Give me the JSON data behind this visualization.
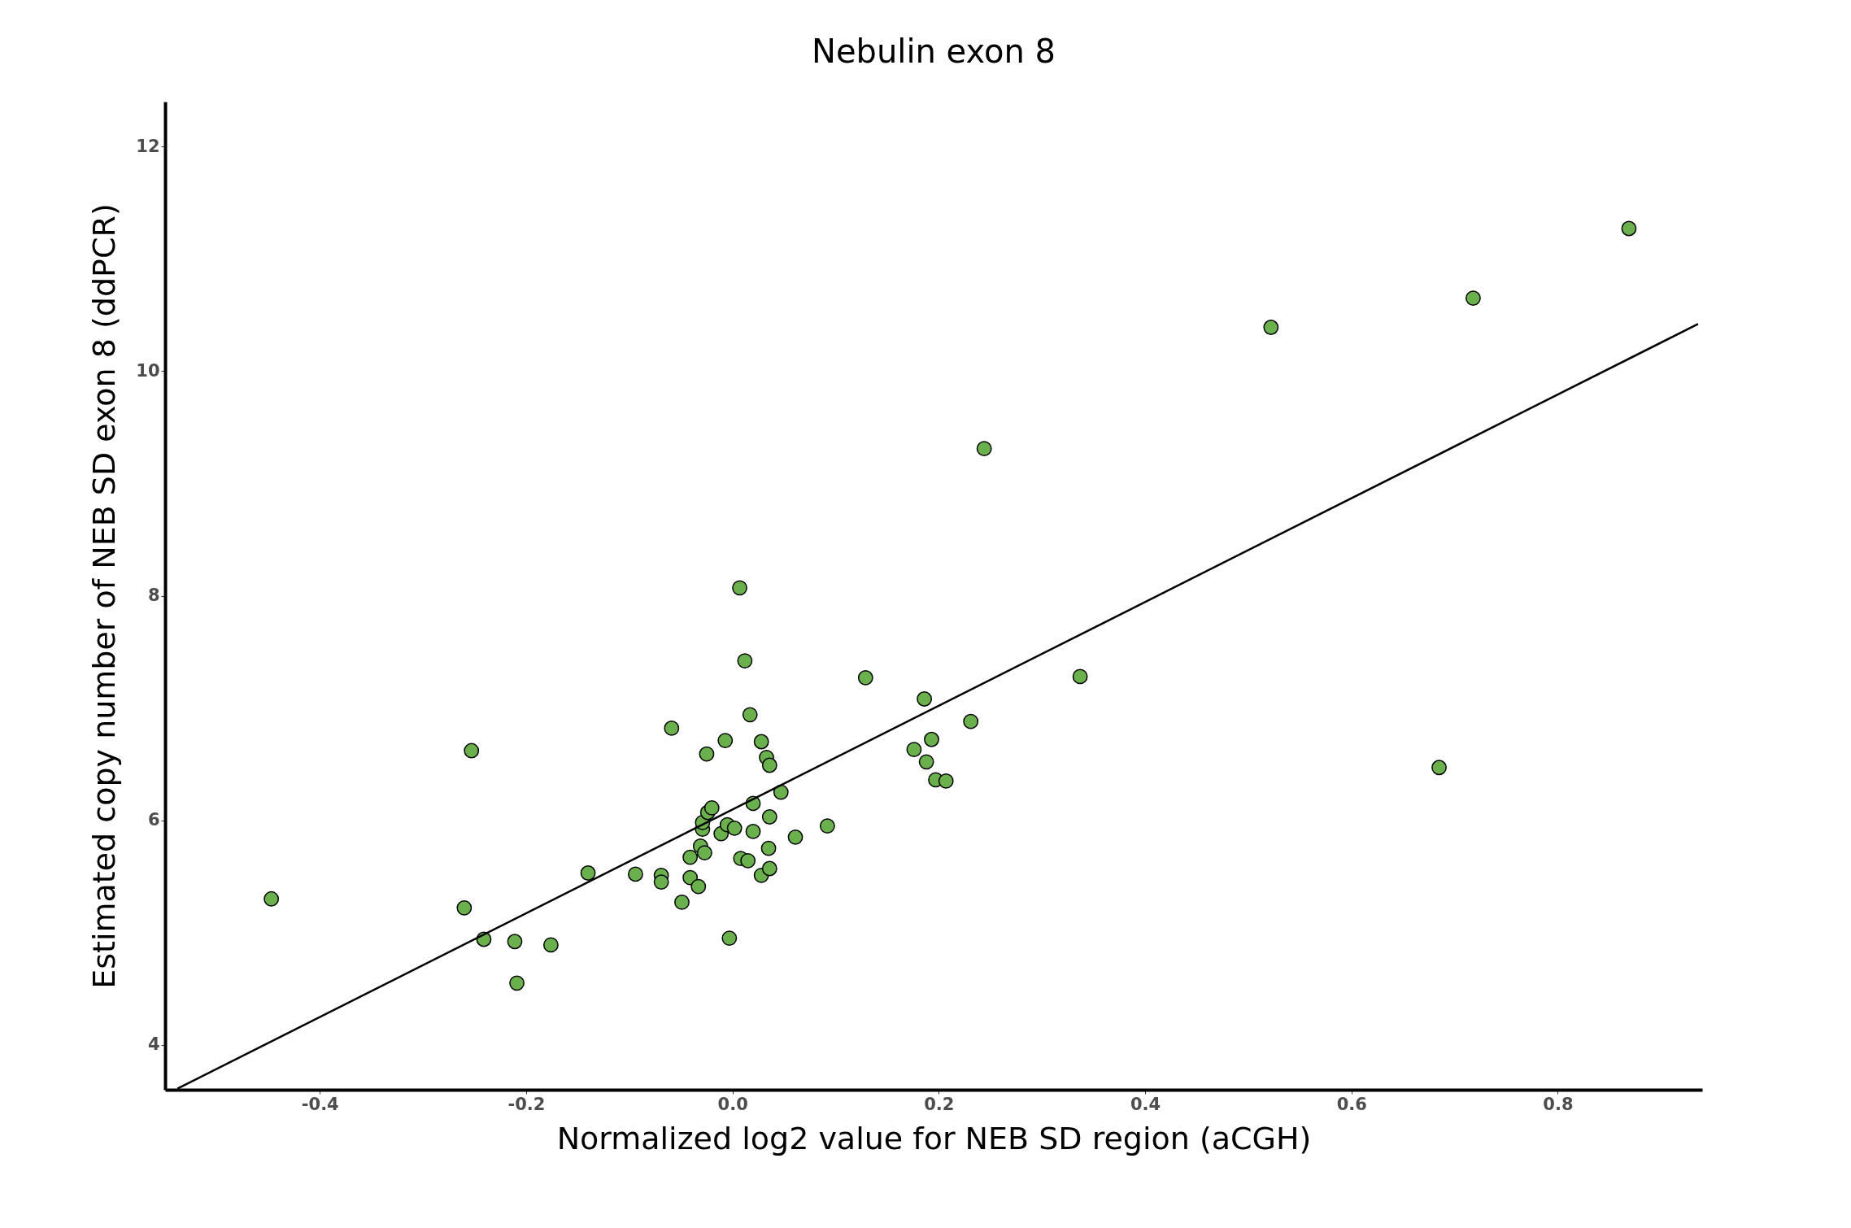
{
  "chart_data": {
    "type": "scatter",
    "title": "Nebulin exon 8",
    "xlabel": "Normalized log2 value for NEB SD region (aCGH)",
    "ylabel": "Estimated copy number of NEB SD exon 8 (ddPCR)",
    "xlim": [
      -0.55,
      0.94
    ],
    "ylim": [
      3.6,
      12.4
    ],
    "xticks": [
      -0.4,
      -0.2,
      {
        "value": 0,
        "label": "0.0"
      },
      0.2,
      0.4,
      0.6,
      0.8
    ],
    "yticks": [
      4,
      6,
      8,
      10,
      12
    ],
    "grid": false,
    "series": [
      {
        "marker": "circle",
        "color": "#6ab04c",
        "x": [
          -0.447,
          -0.26,
          -0.253,
          -0.241,
          -0.211,
          -0.209,
          -0.176,
          -0.14,
          -0.094,
          -0.069,
          -0.069,
          -0.059,
          -0.049,
          -0.041,
          -0.041,
          -0.033,
          -0.031,
          -0.029,
          -0.029,
          -0.027,
          -0.025,
          -0.024,
          -0.02,
          -0.011,
          -0.007,
          -0.005,
          -0.003,
          0.002,
          0.007,
          0.008,
          0.012,
          0.015,
          0.017,
          0.02,
          0.02,
          0.028,
          0.028,
          0.033,
          0.035,
          0.036,
          0.036,
          0.036,
          0.047,
          0.061,
          0.092,
          0.129,
          0.176,
          0.186,
          0.188,
          0.193,
          0.197,
          0.207,
          0.231,
          0.244,
          0.337,
          0.522,
          0.685,
          0.718,
          0.869
        ],
        "values": [
          5.3,
          5.22,
          6.62,
          4.94,
          4.92,
          4.55,
          4.89,
          5.53,
          5.52,
          5.51,
          5.45,
          6.82,
          5.27,
          5.67,
          5.49,
          5.41,
          5.77,
          5.92,
          5.98,
          5.71,
          6.59,
          6.07,
          6.11,
          5.88,
          6.71,
          5.96,
          4.95,
          5.93,
          8.07,
          5.66,
          7.42,
          5.64,
          6.94,
          5.9,
          6.15,
          5.51,
          6.7,
          6.56,
          5.75,
          6.03,
          5.57,
          6.49,
          6.25,
          5.85,
          5.95,
          7.27,
          6.63,
          7.08,
          6.52,
          6.72,
          6.36,
          6.35,
          6.88,
          9.31,
          7.28,
          10.39,
          6.47,
          10.65,
          11.27
        ]
      },
      {
        "type": "line",
        "color": "#000000",
        "x": [
          -0.538,
          0.936
        ],
        "values": [
          3.61,
          10.42
        ]
      }
    ]
  }
}
